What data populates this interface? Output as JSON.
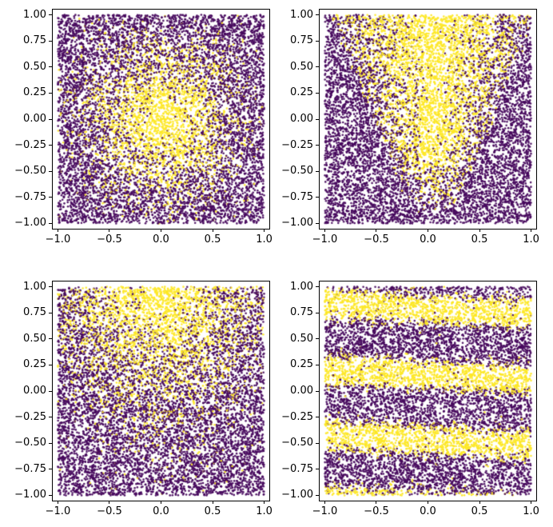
{
  "figure": {
    "background": "#ffffff",
    "rows": 2,
    "cols": 2,
    "description": "2x2 grid of dense scatter plots, binary-labeled points (viridis purple/yellow) on white"
  },
  "chart_data": [
    {
      "type": "scatter",
      "position": "top-left",
      "title": "",
      "xlabel": "",
      "ylabel": "",
      "xlim": [
        -1.05,
        1.05
      ],
      "ylim": [
        -1.05,
        1.05
      ],
      "xticks": [
        -1.0,
        -0.5,
        0.0,
        0.5,
        1.0
      ],
      "xtick_labels": [
        "−1.0",
        "−0.5",
        "0.0",
        "0.5",
        "1.0"
      ],
      "yticks": [
        -1.0,
        -0.75,
        -0.5,
        -0.25,
        0.0,
        0.25,
        0.5,
        0.75,
        1.0
      ],
      "ytick_labels": [
        "−1.00",
        "−0.75",
        "−0.50",
        "−0.25",
        "0.00",
        "0.25",
        "0.50",
        "0.75",
        "1.00"
      ],
      "grid": false,
      "legend": false,
      "n_points": 10000,
      "seed": 101,
      "marker_radius": 1.3,
      "class_colors": {
        "low": "#46085c",
        "high": "#fde725"
      },
      "pattern": {
        "kind": "radial_gaussian",
        "cx": 0.0,
        "cy": 0.0,
        "sigma": 0.42
      },
      "pattern_description": "Uniform random points in [-1,1]^2; probability of yellow class peaks in a circular blob centered at the origin, purple elsewhere"
    },
    {
      "type": "scatter",
      "position": "top-right",
      "title": "",
      "xlabel": "",
      "ylabel": "",
      "xlim": [
        -1.05,
        1.05
      ],
      "ylim": [
        -1.05,
        1.05
      ],
      "xticks": [
        -1.0,
        -0.5,
        0.0,
        0.5,
        1.0
      ],
      "xtick_labels": [
        "−1.0",
        "−0.5",
        "0.0",
        "0.5",
        "1.0"
      ],
      "yticks": [
        -1.0,
        -0.75,
        -0.5,
        -0.25,
        0.0,
        0.25,
        0.5,
        0.75,
        1.0
      ],
      "ytick_labels": [
        "−1.00",
        "−0.75",
        "−0.50",
        "−0.25",
        "0.00",
        "0.25",
        "0.50",
        "0.75",
        "1.00"
      ],
      "grid": false,
      "legend": false,
      "n_points": 10000,
      "seed": 202,
      "marker_radius": 1.3,
      "class_colors": {
        "low": "#46085c",
        "high": "#fde725"
      },
      "pattern": {
        "kind": "cone_up",
        "cx": 0.05,
        "w0": 0.18,
        "w1": 0.42,
        "fade_start": -0.95,
        "fade_len": 0.7
      },
      "pattern_description": "Yellow class fills an upward-opening cone: narrow near y≈-0.6 at center, widening toward the top edge; purple elsewhere"
    },
    {
      "type": "scatter",
      "position": "bottom-left",
      "title": "",
      "xlabel": "",
      "ylabel": "",
      "xlim": [
        -1.05,
        1.05
      ],
      "ylim": [
        -1.05,
        1.05
      ],
      "xticks": [
        -1.0,
        -0.5,
        0.0,
        0.5,
        1.0
      ],
      "xtick_labels": [
        "−1.0",
        "−0.5",
        "0.0",
        "0.5",
        "1.0"
      ],
      "yticks": [
        -1.0,
        -0.75,
        -0.5,
        -0.25,
        0.0,
        0.25,
        0.5,
        0.75,
        1.0
      ],
      "ytick_labels": [
        "−1.00",
        "−0.75",
        "−0.50",
        "−0.25",
        "0.00",
        "0.25",
        "0.50",
        "0.75",
        "1.00"
      ],
      "grid": false,
      "legend": false,
      "n_points": 10000,
      "seed": 303,
      "marker_radius": 1.3,
      "class_colors": {
        "low": "#46085c",
        "high": "#fde725"
      },
      "pattern": {
        "kind": "gaussian2d",
        "cx": 0.0,
        "cy": 1.0,
        "sx": 0.55,
        "sy": 0.7
      },
      "pattern_description": "Yellow class concentrated in a wide blob at the top-center edge, density fading toward the bottom; purple elsewhere"
    },
    {
      "type": "scatter",
      "position": "bottom-right",
      "title": "",
      "xlabel": "",
      "ylabel": "",
      "xlim": [
        -1.05,
        1.05
      ],
      "ylim": [
        -1.05,
        1.05
      ],
      "xticks": [
        -1.0,
        -0.5,
        0.0,
        0.5,
        1.0
      ],
      "xtick_labels": [
        "−1.0",
        "−0.5",
        "0.0",
        "0.5",
        "1.0"
      ],
      "yticks": [
        -1.0,
        -0.75,
        -0.5,
        -0.25,
        0.0,
        0.25,
        0.5,
        0.75,
        1.0
      ],
      "ytick_labels": [
        "−1.00",
        "−0.75",
        "−0.50",
        "−0.25",
        "0.00",
        "0.25",
        "0.50",
        "0.75",
        "1.00"
      ],
      "grid": false,
      "legend": false,
      "n_points": 10000,
      "seed": 404,
      "marker_radius": 1.3,
      "class_colors": {
        "low": "#46085c",
        "high": "#fde725"
      },
      "pattern": {
        "kind": "sine_bands",
        "k": 10,
        "kx": 0.5,
        "gain": 5,
        "offset": 0.25
      },
      "pattern_description": "Yellow class forms horizontal sinusoidal bands centered near y≈0.75, y≈0.15, y≈-0.5 and the bottom edge; purple between bands"
    }
  ]
}
